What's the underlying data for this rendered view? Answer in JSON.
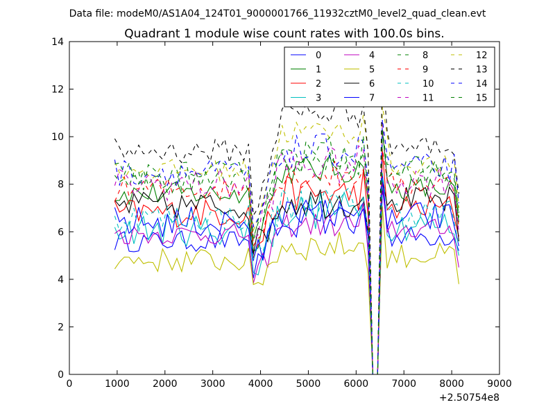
{
  "header": {
    "data_file": "Data file: modeM0/AS1A04_124T01_9000001766_11932cztM0_level2_quad_clean.evt"
  },
  "chart_data": {
    "type": "line",
    "title": "Quadrant 1 module wise count rates with 100.0s bins.",
    "xlabel": "",
    "ylabel": "",
    "x_offset_label": "+2.50754e8",
    "xlim": [
      0,
      9000
    ],
    "ylim": [
      0,
      14
    ],
    "xticks": [
      0,
      1000,
      2000,
      3000,
      4000,
      5000,
      6000,
      7000,
      8000,
      9000
    ],
    "yticks": [
      0,
      2,
      4,
      6,
      8,
      10,
      12,
      14
    ],
    "grid": false,
    "legend": {
      "position": "top-right",
      "columns": 4
    },
    "x_segments": [
      [
        950,
        3750
      ],
      [
        3850,
        6250
      ],
      [
        6350,
        6450
      ],
      [
        6550,
        8150
      ]
    ],
    "series": [
      {
        "name": "0",
        "color": "#0000ff",
        "style": "solid",
        "base": 5.6,
        "mid": 6.8,
        "dip_start": 4.2,
        "end": 5.2
      },
      {
        "name": "1",
        "color": "#008000",
        "style": "solid",
        "base": 7.6,
        "mid": 8.6,
        "dip_start": 5.4,
        "end": 6.4
      },
      {
        "name": "2",
        "color": "#ff0000",
        "style": "solid",
        "base": 6.8,
        "mid": 7.6,
        "dip_start": 5.0,
        "end": 5.8
      },
      {
        "name": "3",
        "color": "#00bfbf",
        "style": "solid",
        "base": 6.1,
        "mid": 6.9,
        "dip_start": 4.3,
        "end": 5.0
      },
      {
        "name": "4",
        "color": "#bf00bf",
        "style": "solid",
        "base": 5.9,
        "mid": 6.3,
        "dip_start": 3.7,
        "end": 4.5
      },
      {
        "name": "5",
        "color": "#bfbf00",
        "style": "solid",
        "base": 4.8,
        "mid": 5.4,
        "dip_start": 3.6,
        "end": 3.8
      },
      {
        "name": "6",
        "color": "#000000",
        "style": "solid",
        "base": 7.1,
        "mid": 7.3,
        "dip_start": 5.1,
        "end": 5.6
      },
      {
        "name": "7",
        "color": "#0000ff",
        "style": "solid",
        "base": 6.4,
        "mid": 6.6,
        "dip_start": 4.6,
        "end": 5.4
      },
      {
        "name": "8",
        "color": "#008000",
        "style": "dashed",
        "base": 8.2,
        "mid": 9.0,
        "dip_start": 5.8,
        "end": 6.6
      },
      {
        "name": "9",
        "color": "#ff0000",
        "style": "dashed",
        "base": 7.8,
        "mid": 8.4,
        "dip_start": 5.6,
        "end": 6.2
      },
      {
        "name": "10",
        "color": "#00bfbf",
        "style": "dashed",
        "base": 6.6,
        "mid": 7.2,
        "dip_start": 4.8,
        "end": 5.4
      },
      {
        "name": "11",
        "color": "#bf00bf",
        "style": "dashed",
        "base": 8.0,
        "mid": 8.8,
        "dip_start": 5.6,
        "end": 6.0
      },
      {
        "name": "12",
        "color": "#bfbf00",
        "style": "dashed",
        "base": 8.6,
        "mid": 10.2,
        "dip_start": 6.2,
        "end": 7.0
      },
      {
        "name": "13",
        "color": "#000000",
        "style": "dashed",
        "base": 9.4,
        "mid": 11.0,
        "dip_start": 6.6,
        "end": 7.6
      },
      {
        "name": "14",
        "color": "#0000ff",
        "style": "dashed",
        "base": 8.5,
        "mid": 9.4,
        "dip_start": 6.0,
        "end": 7.2
      },
      {
        "name": "15",
        "color": "#008000",
        "style": "dashed",
        "base": 8.3,
        "mid": 9.2,
        "dip_start": 5.9,
        "end": 6.8
      }
    ]
  }
}
